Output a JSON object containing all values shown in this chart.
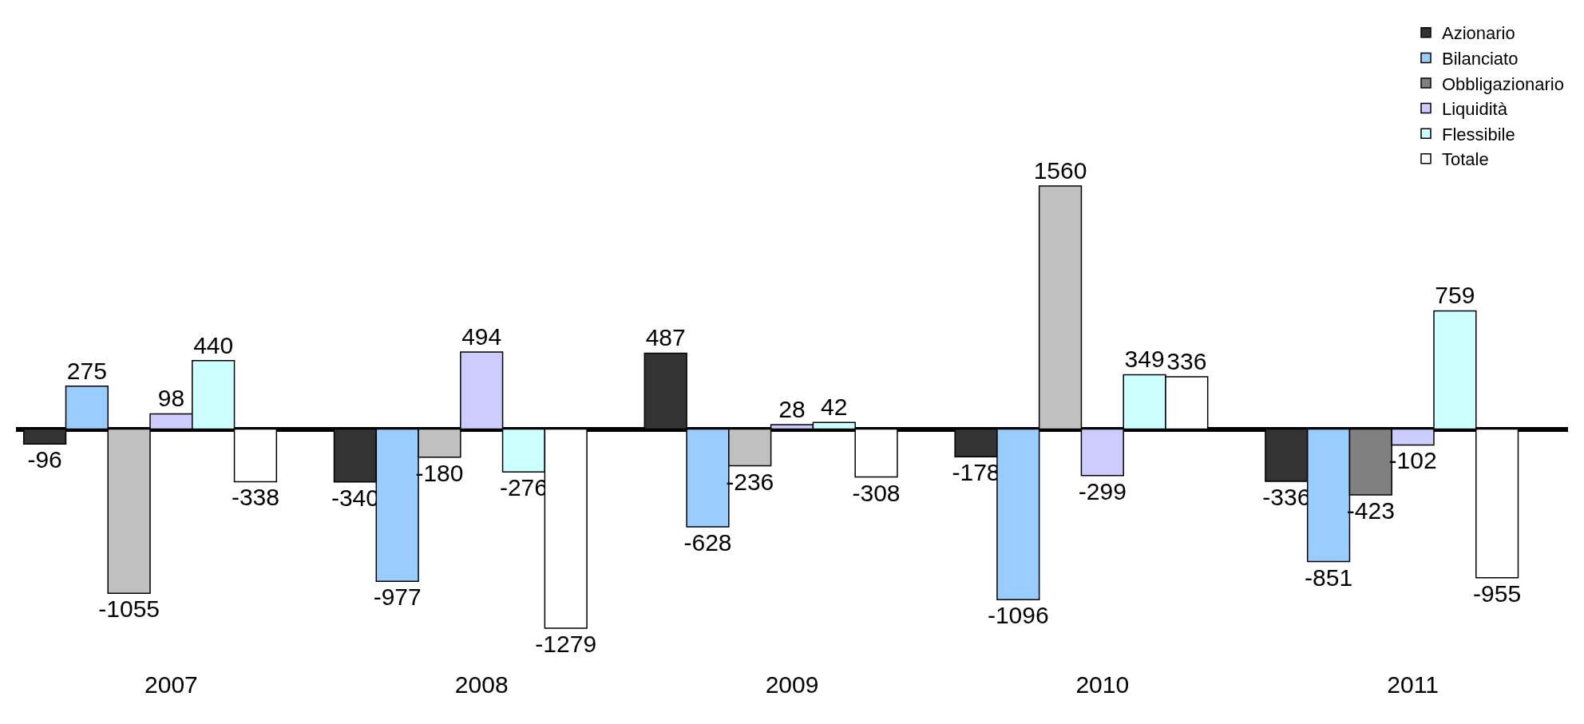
{
  "chart_data": {
    "type": "bar",
    "categories": [
      "2007",
      "2008",
      "2009",
      "2010",
      "2011"
    ],
    "series": [
      {
        "name": "Azionario",
        "color": "#333333",
        "values": [
          -96,
          -340,
          487,
          -178,
          -336
        ]
      },
      {
        "name": "Bilanciato",
        "color": "#99ccff",
        "values": [
          275,
          -977,
          -628,
          -1096,
          -851
        ]
      },
      {
        "name": "Obbligazionario",
        "color": "#808080",
        "colors": [
          "#c0c0c0",
          "#c0c0c0",
          "#c0c0c0",
          "#c0c0c0",
          "#808080"
        ],
        "values": [
          -1055,
          -180,
          -236,
          1560,
          -423
        ]
      },
      {
        "name": "Liquidità",
        "color": "#ccccff",
        "values": [
          98,
          494,
          28,
          -299,
          -102
        ]
      },
      {
        "name": "Flessibile",
        "color": "#ccffff",
        "values": [
          440,
          -276,
          42,
          349,
          759
        ]
      },
      {
        "name": "Totale",
        "color": "#ffffff",
        "values": [
          -338,
          -1279,
          -308,
          336,
          -955
        ]
      }
    ],
    "data_labels": true,
    "legend": "top right",
    "grid": false,
    "tick_labels": "x"
  }
}
